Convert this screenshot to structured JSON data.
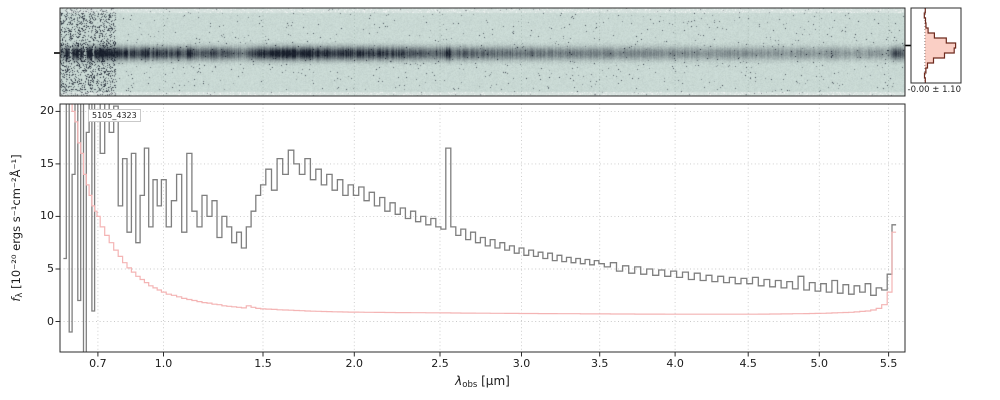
{
  "panel_label": "5105_4323",
  "axes": {
    "xlabel_lambda": "λ",
    "xlabel_sub": "obs",
    "xlabel_unit": " [μm]",
    "ylabel_f": "f",
    "ylabel_sub": "λ",
    "ylabel_unit": " [10⁻²⁰ ergs s⁻¹cm⁻²Å⁻¹]"
  },
  "colors": {
    "flux": "#7f7f7f",
    "uncertainty": "#f4b4b4",
    "profile_fill": "#f6a08c",
    "profile_line": "#6e2a1e",
    "heatmap_bg": "#cbdbd6",
    "heatmap_trace": "#181f2c",
    "grid": "#c9c9c9",
    "spine": "#2b2b2b"
  },
  "chart_data": [
    {
      "type": "heatmap",
      "name": "2d-spectrum",
      "x_range": [
        0.54,
        5.62
      ],
      "rows": 88,
      "trace_center_row": 45,
      "trace_sigma_rows": 4.6,
      "intensity_source": "flux"
    },
    {
      "type": "line",
      "name": "1d-spectrum",
      "x_scale_power": 0.75,
      "x_range": [
        0.54,
        5.62
      ],
      "y_range": [
        -2.9,
        20.7
      ],
      "x_ticks": [
        "0.7",
        "1.0",
        "1.5",
        "2.0",
        "2.5",
        "3.0",
        "3.5",
        "4.0",
        "4.5",
        "5.0",
        "5.5"
      ],
      "y_ticks": [
        "0",
        "5",
        "10",
        "15",
        "20"
      ],
      "grid": true,
      "x": [
        0.56,
        0.572,
        0.584,
        0.596,
        0.608,
        0.62,
        0.632,
        0.644,
        0.656,
        0.668,
        0.68,
        0.692,
        0.7,
        0.72,
        0.74,
        0.76,
        0.78,
        0.8,
        0.82,
        0.84,
        0.86,
        0.88,
        0.9,
        0.92,
        0.94,
        0.96,
        0.98,
        1.0,
        1.025,
        1.05,
        1.075,
        1.1,
        1.125,
        1.15,
        1.175,
        1.2,
        1.225,
        1.25,
        1.275,
        1.3,
        1.325,
        1.35,
        1.375,
        1.4,
        1.425,
        1.45,
        1.475,
        1.5,
        1.53,
        1.56,
        1.59,
        1.62,
        1.65,
        1.68,
        1.71,
        1.74,
        1.77,
        1.8,
        1.83,
        1.86,
        1.89,
        1.92,
        1.95,
        1.98,
        2.01,
        2.04,
        2.07,
        2.1,
        2.13,
        2.16,
        2.19,
        2.22,
        2.25,
        2.28,
        2.31,
        2.34,
        2.37,
        2.4,
        2.43,
        2.46,
        2.49,
        2.52,
        2.55,
        2.58,
        2.61,
        2.64,
        2.67,
        2.7,
        2.73,
        2.76,
        2.79,
        2.82,
        2.85,
        2.88,
        2.91,
        2.94,
        2.97,
        3.0,
        3.03,
        3.06,
        3.09,
        3.12,
        3.15,
        3.18,
        3.21,
        3.24,
        3.27,
        3.3,
        3.33,
        3.36,
        3.39,
        3.42,
        3.45,
        3.48,
        3.51,
        3.55,
        3.59,
        3.63,
        3.67,
        3.71,
        3.75,
        3.79,
        3.83,
        3.87,
        3.91,
        3.95,
        3.99,
        4.03,
        4.07,
        4.11,
        4.15,
        4.19,
        4.23,
        4.27,
        4.31,
        4.35,
        4.39,
        4.43,
        4.47,
        4.51,
        4.55,
        4.59,
        4.63,
        4.67,
        4.71,
        4.75,
        4.79,
        4.83,
        4.87,
        4.91,
        4.95,
        4.99,
        5.03,
        5.07,
        5.11,
        5.15,
        5.19,
        5.23,
        5.27,
        5.31,
        5.35,
        5.39,
        5.43,
        5.47,
        5.51,
        5.54
      ],
      "series": [
        {
          "name": "flux",
          "values": [
            6,
            28,
            -1,
            14,
            35,
            2,
            22,
            -3,
            18,
            40,
            1,
            25,
            21,
            16,
            23,
            18,
            20.5,
            11,
            15.5,
            8.5,
            16,
            7.5,
            12,
            16.5,
            9,
            13.5,
            11,
            13.5,
            9,
            11.5,
            14,
            8.5,
            16,
            10.5,
            9,
            12,
            10,
            11.5,
            8,
            10,
            9,
            7.5,
            8.5,
            7,
            9,
            10.5,
            12,
            13,
            14.5,
            12.5,
            15.5,
            14,
            16.3,
            15,
            14,
            15.5,
            13.5,
            14.5,
            13,
            14,
            12.5,
            13.5,
            12,
            13,
            12,
            12.8,
            11.5,
            12.3,
            11,
            11.8,
            10.5,
            11.3,
            10.2,
            10.8,
            9.8,
            10.5,
            9.5,
            10,
            9.2,
            9.8,
            9,
            8.8,
            16.5,
            9,
            8.2,
            8.8,
            7.8,
            8.5,
            7.5,
            8,
            7.2,
            7.8,
            7,
            7.5,
            6.8,
            7.2,
            6.5,
            7,
            6.3,
            6.8,
            6.2,
            6.6,
            6,
            6.5,
            5.8,
            6.3,
            5.7,
            6.1,
            5.6,
            6,
            5.5,
            5.9,
            5.4,
            5.8,
            5.5,
            5.2,
            5.6,
            4.8,
            5.3,
            4.6,
            5.2,
            4.5,
            5,
            4.4,
            4.9,
            4.3,
            4.8,
            4.2,
            4.7,
            4,
            4.6,
            3.9,
            4.4,
            3.8,
            4.3,
            3.7,
            4.2,
            3.6,
            4.1,
            3.6,
            4.2,
            3.4,
            4,
            3.3,
            3.9,
            3.2,
            3.8,
            3.1,
            4.3,
            3,
            3.7,
            2.9,
            3.6,
            2.8,
            3.9,
            2.7,
            3.5,
            2.6,
            3.4,
            2.8,
            3.6,
            2.5,
            3.2,
            3,
            4.5,
            9.2
          ]
        },
        {
          "name": "uncertainty",
          "values": [
            26,
            24,
            22,
            20,
            19,
            17,
            16,
            14,
            13,
            12,
            11,
            10.5,
            10,
            9,
            8.2,
            7.5,
            6.8,
            6.2,
            5.6,
            5.1,
            4.7,
            4.3,
            4,
            3.7,
            3.4,
            3.2,
            3,
            2.8,
            2.6,
            2.5,
            2.35,
            2.2,
            2.1,
            2,
            1.9,
            1.8,
            1.75,
            1.65,
            1.6,
            1.5,
            1.45,
            1.4,
            1.35,
            1.3,
            1.5,
            1.35,
            1.25,
            1.2,
            1.18,
            1.15,
            1.12,
            1.1,
            1.08,
            1.05,
            1.03,
            1,
            0.98,
            0.97,
            0.95,
            0.94,
            0.93,
            0.92,
            0.91,
            0.9,
            0.9,
            0.89,
            0.88,
            0.88,
            0.87,
            0.87,
            0.86,
            0.86,
            0.85,
            0.85,
            0.85,
            0.84,
            0.84,
            0.84,
            0.83,
            0.83,
            0.83,
            0.82,
            0.82,
            0.81,
            0.81,
            0.8,
            0.8,
            0.8,
            0.79,
            0.79,
            0.79,
            0.78,
            0.78,
            0.78,
            0.77,
            0.77,
            0.77,
            0.76,
            0.76,
            0.76,
            0.76,
            0.75,
            0.75,
            0.75,
            0.75,
            0.74,
            0.74,
            0.74,
            0.74,
            0.74,
            0.73,
            0.73,
            0.73,
            0.73,
            0.73,
            0.73,
            0.72,
            0.72,
            0.72,
            0.72,
            0.71,
            0.71,
            0.71,
            0.71,
            0.71,
            0.7,
            0.7,
            0.7,
            0.7,
            0.7,
            0.7,
            0.7,
            0.7,
            0.7,
            0.7,
            0.7,
            0.7,
            0.7,
            0.7,
            0.7,
            0.7,
            0.71,
            0.71,
            0.72,
            0.72,
            0.73,
            0.73,
            0.74,
            0.74,
            0.75,
            0.76,
            0.77,
            0.78,
            0.8,
            0.82,
            0.84,
            0.86,
            0.88,
            0.92,
            0.96,
            1,
            1.1,
            1.25,
            1.6,
            2.8,
            8.5
          ]
        }
      ]
    },
    {
      "type": "area",
      "name": "cross-dispersion-profile",
      "positions": [
        -7,
        -6,
        -5,
        -4,
        -3,
        -2,
        -1,
        0,
        1,
        2,
        3,
        4,
        5,
        6,
        7
      ],
      "values": [
        0.02,
        -0.04,
        0.03,
        0.06,
        0.18,
        0.55,
        1.25,
        1.8,
        1.72,
        1.15,
        0.5,
        0.15,
        0.05,
        -0.03,
        0.02
      ],
      "stats_label": "-0.00 ± 1.10"
    }
  ]
}
